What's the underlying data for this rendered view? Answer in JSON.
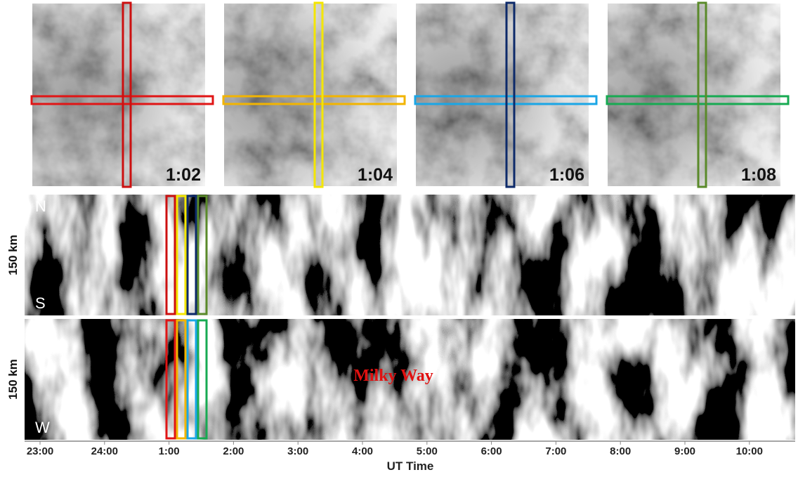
{
  "panels": [
    {
      "label": "1:02"
    },
    {
      "label": "1:04"
    },
    {
      "label": "1:06"
    },
    {
      "label": "1:08"
    }
  ],
  "keograms": [
    {
      "axis_label": "150 km",
      "top": "N",
      "bottom": "S"
    },
    {
      "axis_label": "150 km",
      "top": "E",
      "bottom": "W"
    }
  ],
  "annotation": "Milky Way",
  "x_axis": {
    "label": "UT Time",
    "ticks": [
      "23:00",
      "24:00",
      "1:00",
      "2:00",
      "3:00",
      "4:00",
      "5:00",
      "6:00",
      "7:00",
      "8:00",
      "9:00",
      "10:00"
    ]
  }
}
